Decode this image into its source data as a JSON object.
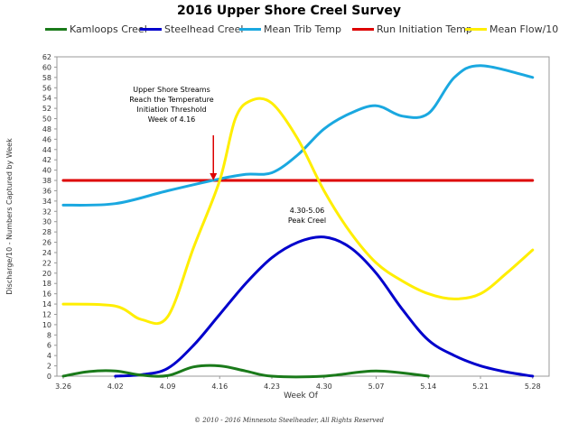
{
  "chart_data": {
    "type": "line",
    "title": "2016 Upper Shore Creel Survey",
    "xlabel": "Week Of",
    "ylabel": "Discharge/10 - Numbers Captured by Week",
    "x": [
      "3.26",
      "4.02",
      "4.09",
      "4.16",
      "4.23",
      "4.30",
      "5.07",
      "5.14",
      "5.21",
      "5.28"
    ],
    "yticks": [
      0,
      2,
      4,
      6,
      8,
      10,
      12,
      14,
      16,
      18,
      20,
      22,
      24,
      26,
      28,
      30,
      32,
      34,
      36,
      38,
      40,
      42,
      44,
      46,
      48,
      50,
      52,
      54,
      56,
      58,
      60,
      62
    ],
    "ylim": [
      0,
      62
    ],
    "grid": false,
    "legend_position": "top",
    "series": [
      {
        "name": "Kamloops Creel",
        "color": "#1a7a1a",
        "points": [
          [
            0,
            0
          ],
          [
            0.5,
            0.9
          ],
          [
            1,
            1
          ],
          [
            1.5,
            0.2
          ],
          [
            2,
            0.1
          ],
          [
            2.5,
            1.8
          ],
          [
            3,
            2
          ],
          [
            3.5,
            1
          ],
          [
            4,
            0
          ],
          [
            5,
            0
          ],
          [
            6,
            1
          ],
          [
            7,
            0
          ]
        ]
      },
      {
        "name": "Steelhead Creel",
        "color": "#0000cc",
        "points": [
          [
            1,
            0
          ],
          [
            1.5,
            0.3
          ],
          [
            2,
            1.5
          ],
          [
            2.5,
            6
          ],
          [
            3,
            12
          ],
          [
            3.5,
            18
          ],
          [
            4,
            23
          ],
          [
            4.5,
            26
          ],
          [
            5,
            27
          ],
          [
            5.5,
            25
          ],
          [
            6,
            20
          ],
          [
            6.5,
            13
          ],
          [
            7,
            7
          ],
          [
            7.5,
            4
          ],
          [
            8,
            2
          ],
          [
            8.5,
            0.8
          ],
          [
            9,
            0
          ]
        ]
      },
      {
        "name": "Mean Trib Temp",
        "color": "#1aa8e0",
        "points": [
          [
            0,
            33.2
          ],
          [
            1,
            33.5
          ],
          [
            2,
            36
          ],
          [
            3,
            38.3
          ],
          [
            3.5,
            39.2
          ],
          [
            4,
            39.5
          ],
          [
            4.5,
            43
          ],
          [
            5,
            48
          ],
          [
            5.5,
            51
          ],
          [
            6,
            52.5
          ],
          [
            6.5,
            50.5
          ],
          [
            7,
            51
          ],
          [
            7.5,
            58
          ],
          [
            8,
            60.3
          ],
          [
            9,
            58
          ]
        ]
      },
      {
        "name": "Run Initiation Temp",
        "color": "#dd0000",
        "points": [
          [
            0,
            38
          ],
          [
            9,
            38
          ]
        ]
      },
      {
        "name": "Mean Flow/10",
        "color": "#ffee00",
        "points": [
          [
            0,
            14
          ],
          [
            1,
            13.6
          ],
          [
            1.5,
            11
          ],
          [
            2,
            11.5
          ],
          [
            2.5,
            25
          ],
          [
            3,
            38
          ],
          [
            3.3,
            50
          ],
          [
            3.6,
            53.5
          ],
          [
            4,
            53
          ],
          [
            4.5,
            46
          ],
          [
            5,
            36
          ],
          [
            5.5,
            28
          ],
          [
            6,
            22
          ],
          [
            6.5,
            18.5
          ],
          [
            7,
            16
          ],
          [
            7.5,
            15
          ],
          [
            8,
            16
          ],
          [
            8.5,
            20
          ],
          [
            9,
            24.5
          ]
        ]
      }
    ],
    "annotations": [
      {
        "lines": [
          "Upper Shore Streams",
          "Reach the Temperature",
          "Initiation Threshold",
          "Week of 4.16"
        ],
        "arrow_to": [
          3,
          38
        ]
      },
      {
        "lines": [
          "4.30-5.06",
          "Peak Creel"
        ]
      }
    ]
  },
  "copyright": "© 2010 - 2016 Minnesota Steelheader, All Rights Reserved"
}
